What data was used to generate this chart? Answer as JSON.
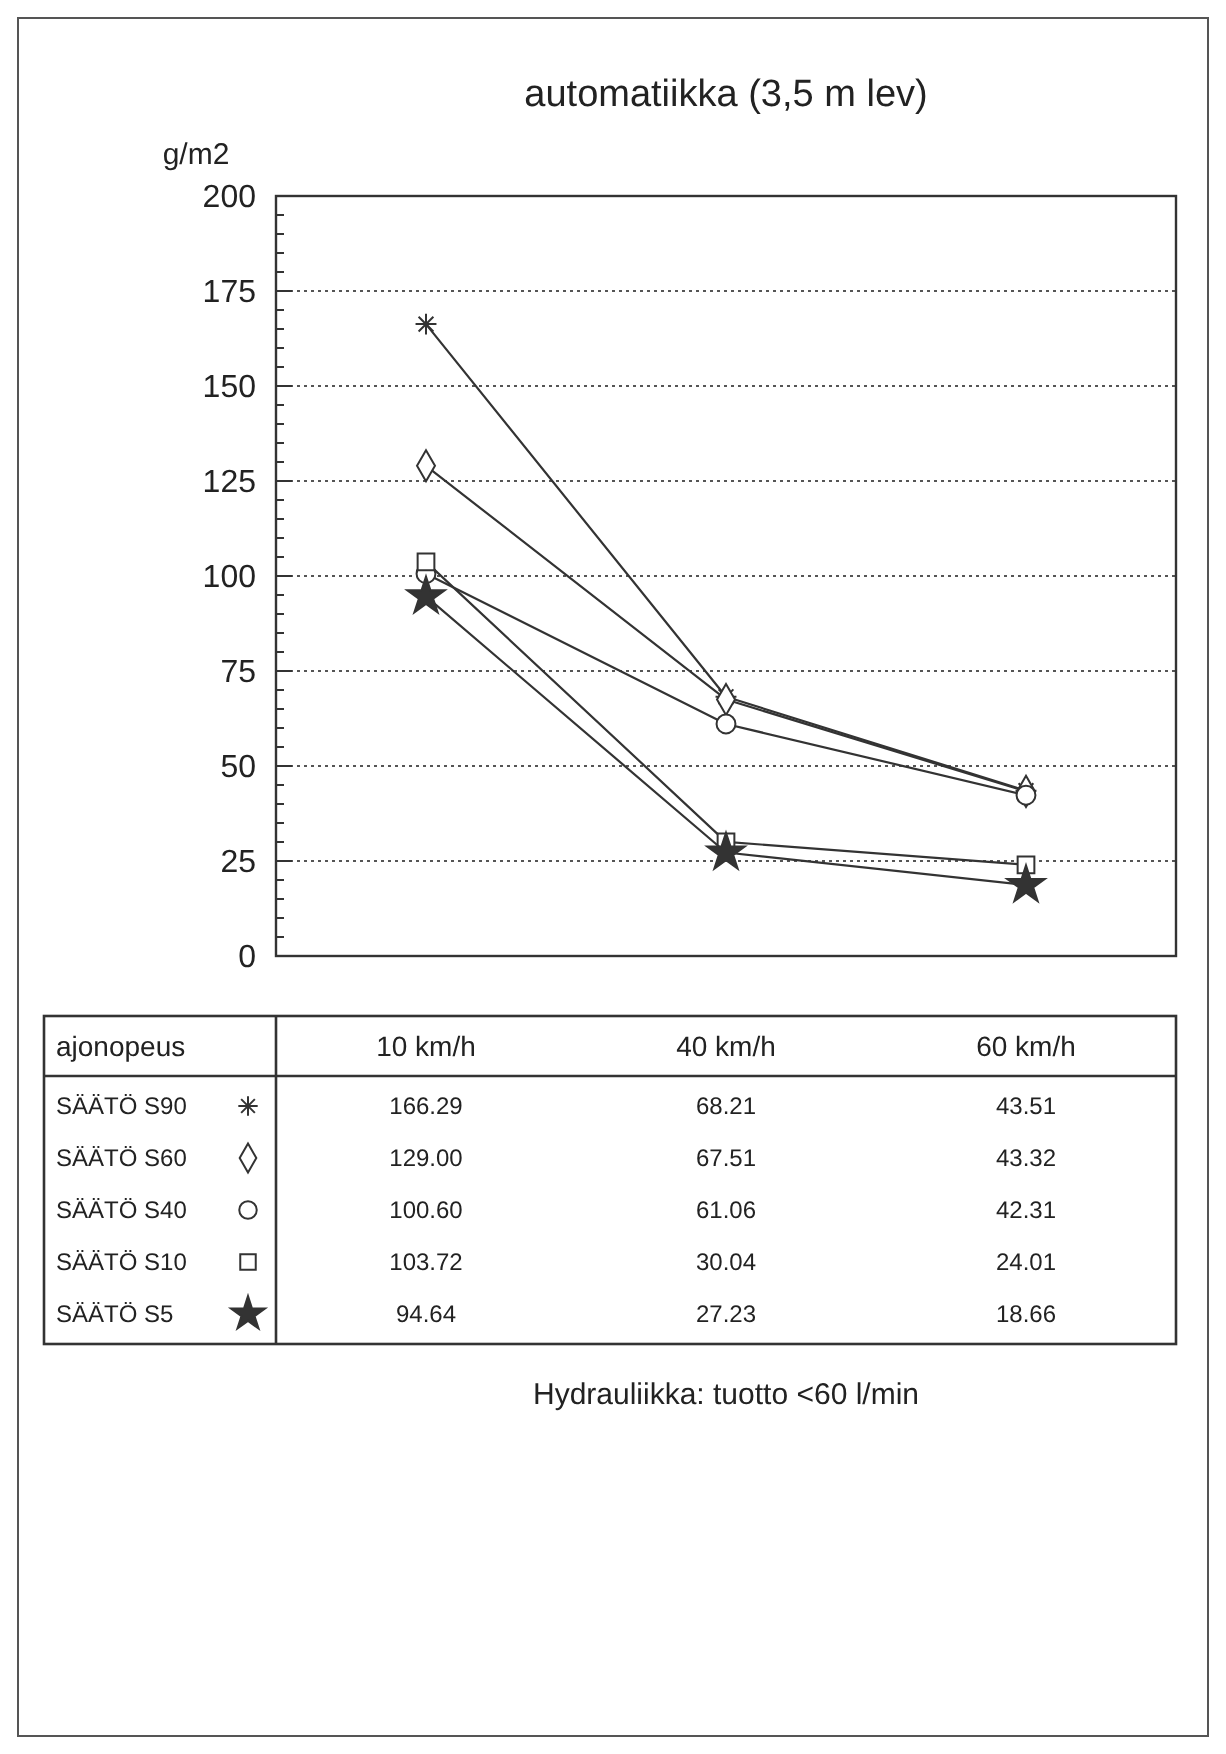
{
  "chart_data": {
    "type": "line",
    "title": "automatiikka (3,5 m lev)",
    "ylabel": "g/m2",
    "xlabel": "ajonopeus",
    "annotations": [
      "Hydrauliikka: tuotto <60 l/min"
    ],
    "categories": [
      "10 km/h",
      "40 km/h",
      "60 km/h"
    ],
    "series": [
      {
        "name": "SÄÄTÖ S90",
        "color": "#333333",
        "marker": "cross",
        "values": [
          166.29,
          68.21,
          43.51
        ],
        "value_labels": [
          "166.29",
          "68.21",
          "43.51"
        ]
      },
      {
        "name": "SÄÄTÖ S60",
        "color": "#333333",
        "marker": "diamond",
        "values": [
          129.0,
          67.51,
          43.32
        ],
        "value_labels": [
          "129.00",
          "67.51",
          "43.32"
        ]
      },
      {
        "name": "SÄÄTÖ S40",
        "color": "#333333",
        "marker": "circle",
        "values": [
          100.6,
          61.06,
          42.31
        ],
        "value_labels": [
          "100.60",
          "61.06",
          "42.31"
        ]
      },
      {
        "name": "SÄÄTÖ S10",
        "color": "#333333",
        "marker": "square",
        "values": [
          103.72,
          30.04,
          24.01
        ],
        "value_labels": [
          "103.72",
          "30.04",
          "24.01"
        ]
      },
      {
        "name": "SÄÄTÖ S5",
        "color": "#333333",
        "marker": "star",
        "values": [
          94.64,
          27.23,
          18.66
        ],
        "value_labels": [
          "94.64",
          "27.23",
          "18.66"
        ]
      }
    ],
    "ylim": [
      0,
      200
    ],
    "yticks": [
      0,
      {
        "value": 5,
        "label": null
      },
      {
        "value": 10,
        "label": null
      },
      {
        "value": 15,
        "label": null
      },
      {
        "value": 20,
        "label": null
      },
      25,
      {
        "value": 30,
        "label": null
      },
      {
        "value": 35,
        "label": null
      },
      {
        "value": 40,
        "label": null
      },
      {
        "value": 45,
        "label": null
      },
      50,
      {
        "value": 55,
        "label": null
      },
      {
        "value": 60,
        "label": null
      },
      {
        "value": 65,
        "label": null
      },
      {
        "value": 70,
        "label": null
      },
      75,
      {
        "value": 80,
        "label": null
      },
      {
        "value": 85,
        "label": null
      },
      {
        "value": 90,
        "label": null
      },
      {
        "value": 95,
        "label": null
      },
      100,
      {
        "value": 105,
        "label": null
      },
      {
        "value": 110,
        "label": null
      },
      {
        "value": 115,
        "label": null
      },
      {
        "value": 120,
        "label": null
      },
      125,
      {
        "value": 130,
        "label": null
      },
      {
        "value": 135,
        "label": null
      },
      {
        "value": 140,
        "label": null
      },
      {
        "value": 145,
        "label": null
      },
      150,
      {
        "value": 155,
        "label": null
      },
      {
        "value": 160,
        "label": null
      },
      {
        "value": 165,
        "label": null
      },
      {
        "value": 170,
        "label": null
      },
      175,
      {
        "value": 180,
        "label": null
      },
      {
        "value": 185,
        "label": null
      },
      {
        "value": 190,
        "label": null
      },
      {
        "value": 195,
        "label": null
      },
      200
    ],
    "grid": "y",
    "legend": "bottom",
    "line_style": "solid"
  }
}
